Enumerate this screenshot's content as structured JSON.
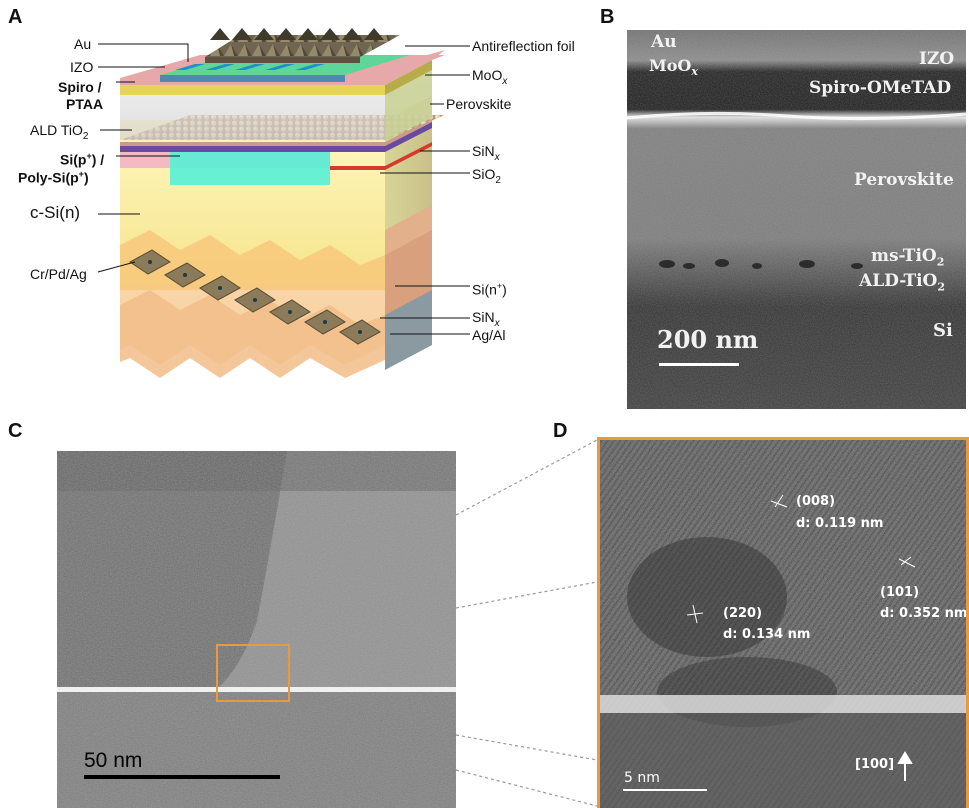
{
  "panels": {
    "a": "A",
    "b": "B",
    "c": "C",
    "d": "D"
  },
  "panel_a": {
    "left_labels": {
      "au": "Au",
      "izo": "IZO",
      "spiro_line1": "Spiro /",
      "spiro_line2": "PTAA",
      "ald_tio2_main": "ALD TiO",
      "ald_tio2_sub": "2",
      "sip_line1_main": "Si(p",
      "sip_line1_sup": "+",
      "sip_line1_end": ") /",
      "sip_line2_main": "Poly-Si(p",
      "sip_line2_sup": "+",
      "sip_line2_end": ")",
      "csi": "c-Si(n)",
      "crpdag": "Cr/Pd/Ag"
    },
    "right_labels": {
      "antireflection": "Antireflection foil",
      "moox_main": "MoO",
      "moox_sub": "x",
      "perovskite": "Perovskite",
      "sinx_main": "SiN",
      "sinx_sub": "x",
      "sio2_main": "SiO",
      "sio2_sub": "2",
      "sinplus_main": "Si(n",
      "sinplus_sup": "+",
      "sinplus_end": ")",
      "sinx2_main": "SiN",
      "sinx2_sub": "x",
      "agal": "Ag/Al"
    },
    "colors": {
      "silicon": "#f7eda0",
      "pink_layer": "#f4b9c3",
      "cyan_layer": "#56f0d6",
      "moox_top": "#e6a8a8",
      "perovskite": "#c7d08f",
      "backside": "#f5c89a",
      "foil": "#7e7258"
    }
  },
  "panel_b": {
    "labels": {
      "au": "Au",
      "izo": "IZO",
      "moox_main": "MoO",
      "moox_sub": "x",
      "spiro": "Spiro-OMeTAD",
      "perovskite": "Perovskite",
      "mstio2_main": "ms-TiO",
      "mstio2_sub": "2",
      "aldtio2_main": "ALD-TiO",
      "aldtio2_sub": "2",
      "si": "Si",
      "scale": "200 nm"
    }
  },
  "panel_c": {
    "scale": "50 nm",
    "box_color": "#e89a3c"
  },
  "panel_d": {
    "border_color": "#e89a3c",
    "planes": [
      {
        "hkl": "(008)",
        "d": "d: 0.119 nm"
      },
      {
        "hkl": "(101)",
        "d": "d: 0.352 nm"
      },
      {
        "hkl": "(220)",
        "d": "d: 0.134 nm"
      }
    ],
    "direction": "[100]",
    "scale": "5 nm"
  }
}
